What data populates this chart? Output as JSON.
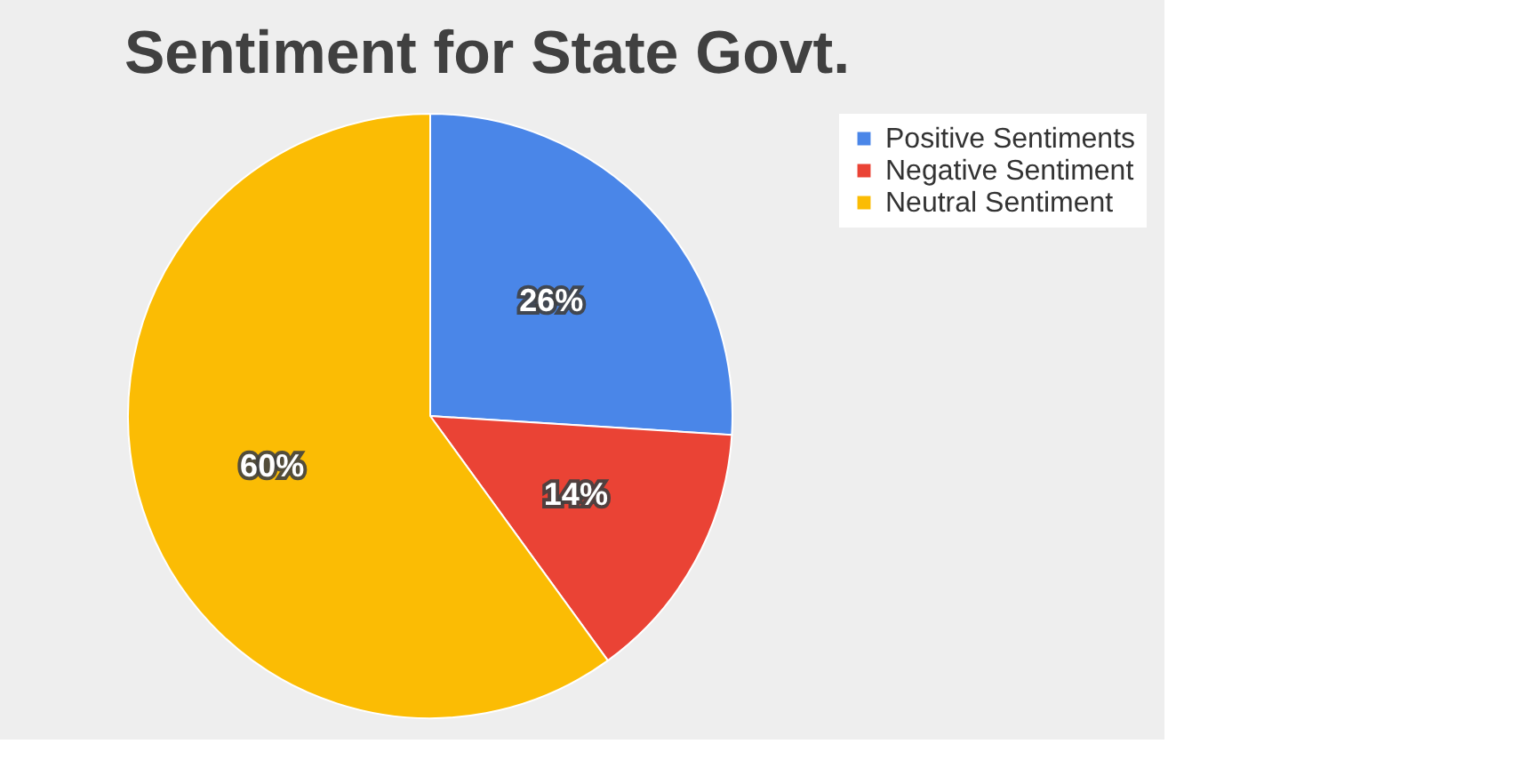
{
  "chart_data": {
    "type": "pie",
    "title": "Sentiment for State Govt.",
    "categories": [
      "Positive Sentiments",
      "Negative Sentiment",
      "Neutral Sentiment"
    ],
    "values": [
      26,
      14,
      60
    ],
    "colors": [
      "#4a86e8",
      "#ea4335",
      "#fbbc04"
    ],
    "value_labels": [
      "26%",
      "14%",
      "60%"
    ],
    "legend": "right"
  }
}
